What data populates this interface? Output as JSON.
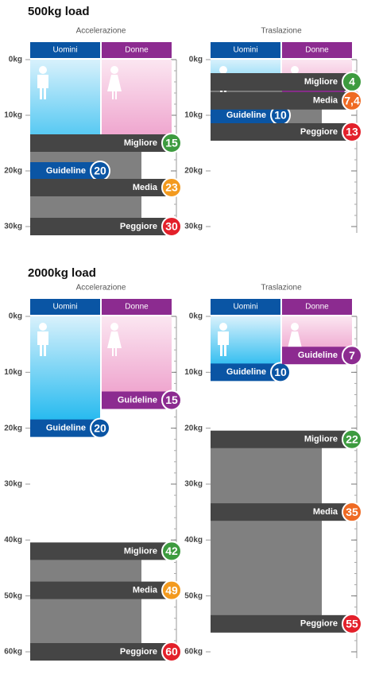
{
  "chart_data": [
    {
      "type": "scale",
      "section_title": "500kg load",
      "subtitle": "Accelerazione",
      "ylim": [
        0,
        30
      ],
      "yticks": [
        {
          "value": 0,
          "label": "0kg"
        },
        {
          "value": 10,
          "label": "10kg"
        },
        {
          "value": 20,
          "label": "20kg"
        },
        {
          "value": 30,
          "label": "30kg"
        }
      ],
      "guideline_label": "Guideline",
      "series": [
        {
          "name": "Uomini",
          "color": "#0a55a4",
          "guideline": 20
        },
        {
          "name": "Donne",
          "color": "#8c2b90",
          "guideline": 15
        }
      ],
      "measures": {
        "names": [
          "Migliore",
          "Media",
          "Peggiore"
        ],
        "values": [
          15,
          23,
          30
        ],
        "colors": [
          "#3d9b3f",
          "#f39a1e",
          "#e3202a"
        ]
      }
    },
    {
      "type": "scale",
      "subtitle": "Traslazione",
      "ylim": [
        0,
        30
      ],
      "yticks": [
        {
          "value": 0,
          "label": "0kg"
        },
        {
          "value": 10,
          "label": "10kg"
        },
        {
          "value": 20,
          "label": "20kg"
        },
        {
          "value": 30,
          "label": "30kg"
        }
      ],
      "guideline_label": "Guideline",
      "series": [
        {
          "name": "Uomini",
          "color": "#0a55a4",
          "guideline": 10
        },
        {
          "name": "Donne",
          "color": "#8c2b90",
          "guideline": 7
        }
      ],
      "measures": {
        "names": [
          "Migliore",
          "Media",
          "Peggiore"
        ],
        "values": [
          4,
          7.4,
          13
        ],
        "value_labels": [
          "4",
          "7,4",
          "13"
        ],
        "colors": [
          "#3d9b3f",
          "#ef6a23",
          "#e3202a"
        ]
      }
    },
    {
      "type": "scale",
      "section_title": "2000kg load",
      "subtitle": "Accelerazione",
      "ylim": [
        0,
        60
      ],
      "yticks": [
        {
          "value": 0,
          "label": "0kg"
        },
        {
          "value": 10,
          "label": "10kg"
        },
        {
          "value": 20,
          "label": "20kg"
        },
        {
          "value": 30,
          "label": "30kg"
        },
        {
          "value": 40,
          "label": "40kg"
        },
        {
          "value": 50,
          "label": "50kg"
        },
        {
          "value": 60,
          "label": "60kg"
        }
      ],
      "guideline_label": "Guideline",
      "series": [
        {
          "name": "Uomini",
          "color": "#0a55a4",
          "guideline": 20
        },
        {
          "name": "Donne",
          "color": "#8c2b90",
          "guideline": 15
        }
      ],
      "measures": {
        "names": [
          "Migliore",
          "Media",
          "Peggiore"
        ],
        "values": [
          42,
          49,
          60
        ],
        "colors": [
          "#3d9b3f",
          "#f39a1e",
          "#e3202a"
        ]
      }
    },
    {
      "type": "scale",
      "subtitle": "Traslazione",
      "ylim": [
        0,
        60
      ],
      "yticks": [
        {
          "value": 0,
          "label": "0kg"
        },
        {
          "value": 10,
          "label": "10kg"
        },
        {
          "value": 20,
          "label": "20kg"
        },
        {
          "value": 30,
          "label": "30kg"
        },
        {
          "value": 40,
          "label": "40kg"
        },
        {
          "value": 50,
          "label": "50kg"
        },
        {
          "value": 60,
          "label": "60kg"
        }
      ],
      "guideline_label": "Guideline",
      "series": [
        {
          "name": "Uomini",
          "color": "#0a55a4",
          "guideline": 10
        },
        {
          "name": "Donne",
          "color": "#8c2b90",
          "guideline": 7
        }
      ],
      "measures": {
        "names": [
          "Migliore",
          "Media",
          "Peggiore"
        ],
        "values": [
          22,
          35,
          55
        ],
        "colors": [
          "#3d9b3f",
          "#ef6a23",
          "#e3202a"
        ]
      }
    }
  ]
}
